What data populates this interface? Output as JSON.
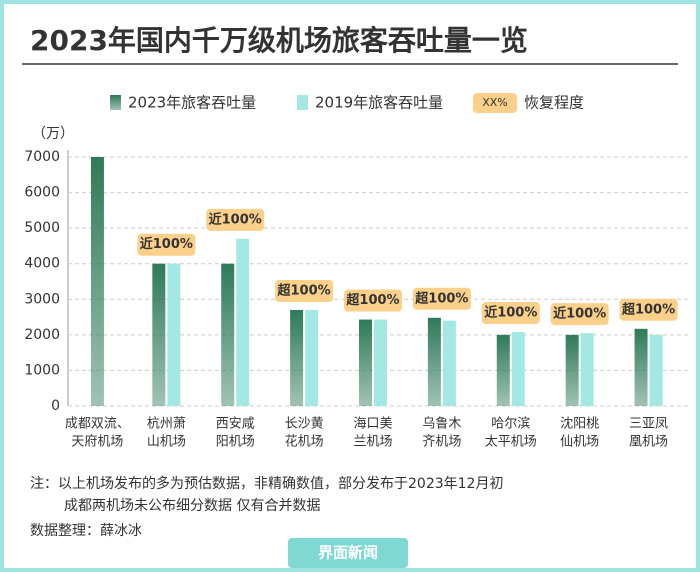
{
  "chart_data": {
    "type": "bar",
    "title": "2023年国内千万级机场旅客吞吐量一览",
    "y_unit": "（万）",
    "categories": [
      [
        "成都双流、",
        "天府机场"
      ],
      [
        "杭州萧",
        "山机场"
      ],
      [
        "西安咸",
        "阳机场"
      ],
      [
        "长沙黄",
        "花机场"
      ],
      [
        "海口美",
        "兰机场"
      ],
      [
        "乌鲁木",
        "齐机场"
      ],
      [
        "哈尔滨",
        "太平机场"
      ],
      [
        "沈阳桃",
        "仙机场"
      ],
      [
        "三亚凤",
        "凰机场"
      ]
    ],
    "series": [
      {
        "name": "2023年旅客吞吐量",
        "color": "#2e7a59",
        "values": [
          7000,
          4000,
          4000,
          2700,
          2430,
          2480,
          2000,
          2000,
          2170
        ]
      },
      {
        "name": "2019年旅客吞吐量",
        "color": "#a4e8e4",
        "values": [
          null,
          4000,
          4700,
          2700,
          2430,
          2400,
          2080,
          2050,
          2000
        ]
      }
    ],
    "recovery_legend": {
      "badge": "XX%",
      "label": "恢复程度"
    },
    "recovery_labels": [
      null,
      "近100%",
      "近100%",
      "超100%",
      "超100%",
      "超100%",
      "近100%",
      "近100%",
      "超100%"
    ],
    "badge_color": "#fbd08a",
    "ylim": [
      0,
      7000
    ],
    "yticks": [
      0,
      1000,
      2000,
      3000,
      4000,
      5000,
      6000,
      7000
    ],
    "grid": true,
    "notes": [
      "注：以上机场发布的多为预估数据，非精确数值，部分发布于2023年12月初",
      "成都两机场未公布细分数据 仅有合并数据"
    ],
    "source": "数据整理：薛冰冰",
    "brand": "界面新闻"
  }
}
